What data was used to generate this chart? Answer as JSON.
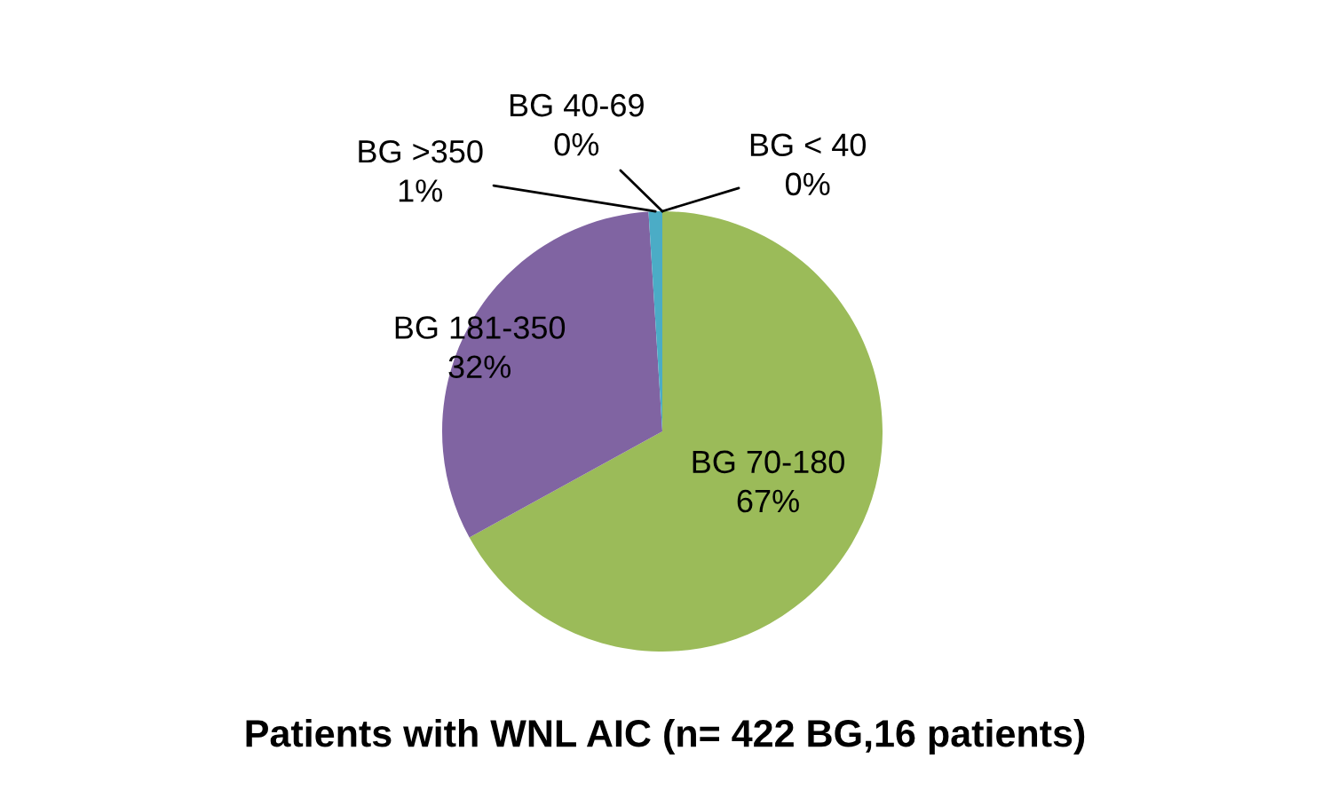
{
  "chart_data": {
    "type": "pie",
    "title": "Patients with WNL AIC (n= 422 BG,16 patients)",
    "categories": [
      "BG < 40",
      "BG 40-69",
      "BG 70-180",
      "BG 181-350",
      "BG >350"
    ],
    "values": [
      0,
      0,
      67,
      32,
      1
    ],
    "colors": [
      "#4f81bd",
      "#c0504d",
      "#9bbb59",
      "#8064a2",
      "#4bacc6"
    ],
    "value_labels": [
      "0%",
      "0%",
      "67%",
      "32%",
      "1%"
    ]
  }
}
